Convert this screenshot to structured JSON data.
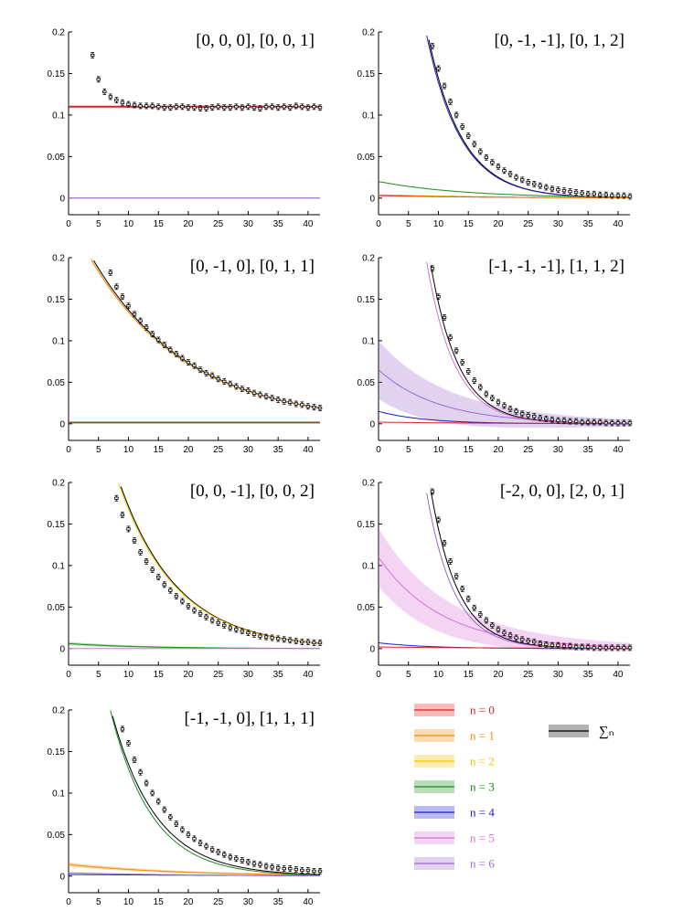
{
  "chart_data": {
    "type": "line",
    "panels": [
      {
        "title": "[0, 0, 0], [0, 0, 1]",
        "xlim": [
          0,
          42
        ],
        "ylim": [
          -0.02,
          0.2
        ],
        "xticks": [
          0,
          5,
          10,
          15,
          20,
          25,
          30,
          35,
          40
        ],
        "yticks": [
          0,
          0.05,
          0.1,
          0.15,
          0.2
        ],
        "ytick_labels": [
          "0",
          "0.05",
          "0.1",
          "0.15",
          "0.2"
        ],
        "curves": [
          {
            "state": "sum",
            "A": 0.11,
            "k": 0.0,
            "band": 0.0015
          },
          {
            "state": "n0",
            "A": 0.11,
            "k": 0.0,
            "band": 0.001
          },
          {
            "state": "n5",
            "A": 0.0,
            "k": 0.0,
            "band": 0.0
          },
          {
            "state": "n6",
            "A": 0.0,
            "k": 0.0,
            "band": 0.0
          }
        ],
        "points": {
          "x": [
            4,
            5,
            6,
            7,
            8,
            9,
            10,
            11,
            12,
            13,
            14,
            15,
            16,
            17,
            18,
            19,
            20,
            21,
            22,
            23,
            24,
            25,
            26,
            27,
            28,
            29,
            30,
            31,
            32,
            33,
            34,
            35,
            36,
            37,
            38,
            39,
            40,
            41,
            42
          ],
          "y": [
            0.172,
            0.143,
            0.128,
            0.122,
            0.118,
            0.115,
            0.113,
            0.112,
            0.111,
            0.111,
            0.111,
            0.11,
            0.109,
            0.109,
            0.11,
            0.11,
            0.109,
            0.109,
            0.108,
            0.108,
            0.109,
            0.11,
            0.109,
            0.109,
            0.11,
            0.109,
            0.11,
            0.109,
            0.108,
            0.11,
            0.11,
            0.109,
            0.11,
            0.109,
            0.111,
            0.11,
            0.109,
            0.11,
            0.109
          ]
        }
      },
      {
        "title": "[0, -1, -1], [0, 1, 2]",
        "xlim": [
          0,
          42
        ],
        "ylim": [
          -0.02,
          0.2
        ],
        "xticks": [
          0,
          5,
          10,
          15,
          20,
          25,
          30,
          35,
          40
        ],
        "yticks": [
          0,
          0.05,
          0.1,
          0.15,
          0.2
        ],
        "ytick_labels": [
          "0",
          "0.05",
          "0.1",
          "0.15",
          "0.2"
        ],
        "curves": [
          {
            "state": "sum",
            "A": 0.83,
            "k": 0.175,
            "band": 0.0
          },
          {
            "state": "n4",
            "A": 0.8,
            "k": 0.175,
            "band": 0.0
          },
          {
            "state": "n3",
            "A": 0.02,
            "k": 0.07,
            "band": 0.0
          },
          {
            "state": "n0",
            "A": 0.003,
            "k": 0.05,
            "band": 0.0
          },
          {
            "state": "n1",
            "A": 0.004,
            "k": 0.05,
            "band": 0.0
          }
        ],
        "points": {
          "x": [
            9,
            10,
            11,
            12,
            13,
            14,
            15,
            16,
            17,
            18,
            19,
            20,
            21,
            22,
            23,
            24,
            25,
            26,
            27,
            28,
            29,
            30,
            31,
            32,
            33,
            34,
            35,
            36,
            37,
            38,
            39,
            40,
            41,
            42
          ],
          "y": [
            0.183,
            0.156,
            0.135,
            0.116,
            0.1,
            0.086,
            0.075,
            0.065,
            0.056,
            0.049,
            0.043,
            0.038,
            0.033,
            0.029,
            0.025,
            0.022,
            0.019,
            0.017,
            0.015,
            0.013,
            0.011,
            0.01,
            0.009,
            0.008,
            0.007,
            0.006,
            0.005,
            0.005,
            0.004,
            0.004,
            0.003,
            0.003,
            0.003,
            0.002
          ]
        }
      },
      {
        "title": "[0, -1, 0], [0, 1, 1]",
        "xlim": [
          0,
          42
        ],
        "ylim": [
          -0.02,
          0.2
        ],
        "xticks": [
          0,
          5,
          10,
          15,
          20,
          25,
          30,
          35,
          40
        ],
        "yticks": [
          0,
          0.05,
          0.1,
          0.15,
          0.2
        ],
        "ytick_labels": [
          "0",
          "0.05",
          "0.1",
          "0.15",
          "0.2"
        ],
        "curves": [
          {
            "state": "sum",
            "A": 0.255,
            "k": 0.062,
            "band": 0.0
          },
          {
            "state": "n1",
            "A": 0.25,
            "k": 0.062,
            "band": 0.002
          },
          {
            "state": "n0",
            "A": 0.002,
            "k": 0.0,
            "band": 0.0
          },
          {
            "state": "n3",
            "A": 0.001,
            "k": 0.0,
            "band": 0.0
          }
        ],
        "points": {
          "x": [
            7,
            8,
            9,
            10,
            11,
            12,
            13,
            14,
            15,
            16,
            17,
            18,
            19,
            20,
            21,
            22,
            23,
            24,
            25,
            26,
            27,
            28,
            29,
            30,
            31,
            32,
            33,
            34,
            35,
            36,
            37,
            38,
            39,
            40,
            41,
            42
          ],
          "y": [
            0.182,
            0.165,
            0.153,
            0.142,
            0.132,
            0.124,
            0.116,
            0.108,
            0.101,
            0.095,
            0.089,
            0.084,
            0.079,
            0.074,
            0.07,
            0.065,
            0.061,
            0.058,
            0.054,
            0.051,
            0.048,
            0.045,
            0.042,
            0.04,
            0.037,
            0.035,
            0.033,
            0.031,
            0.029,
            0.027,
            0.026,
            0.024,
            0.023,
            0.021,
            0.02,
            0.019
          ]
        }
      },
      {
        "title": "[-1, -1, -1], [1, 1, 2]",
        "xlim": [
          0,
          42
        ],
        "ylim": [
          -0.02,
          0.2
        ],
        "xticks": [
          0,
          5,
          10,
          15,
          20,
          25,
          30,
          35,
          40
        ],
        "yticks": [
          0,
          0.05,
          0.1,
          0.15,
          0.2
        ],
        "ytick_labels": [
          "0",
          "0.05",
          "0.1",
          "0.15",
          "0.2"
        ],
        "curves": [
          {
            "state": "n6",
            "A": 0.065,
            "k": 0.1,
            "band": 0.035
          },
          {
            "state": "sum",
            "A": 1.25,
            "k": 0.215,
            "band": 0.002
          },
          {
            "state": "n5",
            "A": 1.1,
            "k": 0.215,
            "band": 0.0
          },
          {
            "state": "n4",
            "A": 0.015,
            "k": 0.13,
            "band": 0.0
          },
          {
            "state": "n0",
            "A": 0.002,
            "k": 0.05,
            "band": 0.0
          }
        ],
        "points": {
          "x": [
            9,
            10,
            11,
            12,
            13,
            14,
            15,
            16,
            17,
            18,
            19,
            20,
            21,
            22,
            23,
            24,
            25,
            26,
            27,
            28,
            29,
            30,
            31,
            32,
            33,
            34,
            35,
            36,
            37,
            38,
            39,
            40,
            41,
            42
          ],
          "y": [
            0.187,
            0.153,
            0.128,
            0.104,
            0.088,
            0.074,
            0.063,
            0.052,
            0.044,
            0.036,
            0.031,
            0.026,
            0.022,
            0.018,
            0.015,
            0.012,
            0.01,
            0.009,
            0.007,
            0.006,
            0.005,
            0.004,
            0.004,
            0.003,
            0.003,
            0.002,
            0.002,
            0.002,
            0.002,
            0.001,
            0.001,
            0.001,
            0.001,
            0.001
          ]
        }
      },
      {
        "title": "[0, 0, -1], [0, 0, 2]",
        "xlim": [
          0,
          42
        ],
        "ylim": [
          -0.02,
          0.2
        ],
        "xticks": [
          0,
          5,
          10,
          15,
          20,
          25,
          30,
          35,
          40
        ],
        "yticks": [
          0,
          0.05,
          0.1,
          0.15,
          0.2
        ],
        "ytick_labels": [
          "0",
          "0.05",
          "0.1",
          "0.15",
          "0.2"
        ],
        "curves": [
          {
            "state": "n3",
            "A": 0.006,
            "k": 0.08,
            "band": 0.002
          },
          {
            "state": "sum",
            "A": 0.48,
            "k": 0.103,
            "band": 0.0
          },
          {
            "state": "n2",
            "A": 0.47,
            "k": 0.103,
            "band": 0.002
          },
          {
            "state": "n5",
            "A": 0.0,
            "k": 0.0,
            "band": 0.0
          }
        ],
        "points": {
          "x": [
            8,
            9,
            10,
            11,
            12,
            13,
            14,
            15,
            16,
            17,
            18,
            19,
            20,
            21,
            22,
            23,
            24,
            25,
            26,
            27,
            28,
            29,
            30,
            31,
            32,
            33,
            34,
            35,
            36,
            37,
            38,
            39,
            40,
            41,
            42
          ],
          "y": [
            0.181,
            0.161,
            0.144,
            0.13,
            0.116,
            0.105,
            0.095,
            0.086,
            0.077,
            0.07,
            0.063,
            0.057,
            0.051,
            0.046,
            0.042,
            0.038,
            0.034,
            0.031,
            0.028,
            0.025,
            0.023,
            0.021,
            0.019,
            0.017,
            0.015,
            0.014,
            0.013,
            0.012,
            0.011,
            0.01,
            0.009,
            0.008,
            0.008,
            0.007,
            0.007
          ]
        }
      },
      {
        "title": "[-2, 0, 0], [2, 0, 1]",
        "xlim": [
          0,
          42
        ],
        "ylim": [
          -0.02,
          0.2
        ],
        "xticks": [
          0,
          5,
          10,
          15,
          20,
          25,
          30,
          35,
          40
        ],
        "yticks": [
          0,
          0.05,
          0.1,
          0.15,
          0.2
        ],
        "ytick_labels": [
          "0",
          "0.05",
          "0.1",
          "0.15",
          "0.2"
        ],
        "curves": [
          {
            "state": "n5",
            "A": 0.11,
            "k": 0.095,
            "band": 0.035
          },
          {
            "state": "sum",
            "A": 1.3,
            "k": 0.22,
            "band": 0.004
          },
          {
            "state": "n6",
            "A": 1.1,
            "k": 0.22,
            "band": 0.0
          },
          {
            "state": "n4",
            "A": 0.007,
            "k": 0.12,
            "band": 0.0
          },
          {
            "state": "n0",
            "A": 0.002,
            "k": 0.05,
            "band": 0.0
          }
        ],
        "points": {
          "x": [
            9,
            10,
            11,
            12,
            13,
            14,
            15,
            16,
            17,
            18,
            19,
            20,
            21,
            22,
            23,
            24,
            25,
            26,
            27,
            28,
            29,
            30,
            31,
            32,
            33,
            34,
            35,
            36,
            37,
            38,
            39,
            40,
            41,
            42
          ],
          "y": [
            0.189,
            0.155,
            0.127,
            0.105,
            0.087,
            0.072,
            0.06,
            0.049,
            0.041,
            0.034,
            0.028,
            0.023,
            0.019,
            0.016,
            0.013,
            0.011,
            0.009,
            0.008,
            0.006,
            0.005,
            0.004,
            0.004,
            0.003,
            0.003,
            0.002,
            0.002,
            0.002,
            0.001,
            0.001,
            0.001,
            0.001,
            0.001,
            0.001,
            0.001
          ]
        }
      },
      {
        "title": "[-1, -1, 0], [1, 1, 1]",
        "xlim": [
          0,
          42
        ],
        "ylim": [
          -0.02,
          0.2
        ],
        "xticks": [
          0,
          5,
          10,
          15,
          20,
          25,
          30,
          35,
          40
        ],
        "yticks": [
          0,
          0.05,
          0.1,
          0.15,
          0.2
        ],
        "ytick_labels": [
          "0",
          "0.05",
          "0.1",
          "0.15",
          "0.2"
        ],
        "curves": [
          {
            "state": "n1",
            "A": 0.014,
            "k": 0.055,
            "band": 0.0025
          },
          {
            "state": "sum",
            "A": 0.52,
            "k": 0.135,
            "band": 0.0
          },
          {
            "state": "n3",
            "A": 0.55,
            "k": 0.145,
            "band": 0.0
          },
          {
            "state": "n4",
            "A": 0.002,
            "k": 0.03,
            "band": 0.0
          },
          {
            "state": "n6",
            "A": 0.004,
            "k": 0.05,
            "band": 0.0
          }
        ],
        "points": {
          "x": [
            9,
            10,
            11,
            12,
            13,
            14,
            15,
            16,
            17,
            18,
            19,
            20,
            21,
            22,
            23,
            24,
            25,
            26,
            27,
            28,
            29,
            30,
            31,
            32,
            33,
            34,
            35,
            36,
            37,
            38,
            39,
            40,
            41,
            42
          ],
          "y": [
            0.177,
            0.16,
            0.14,
            0.125,
            0.112,
            0.1,
            0.09,
            0.08,
            0.071,
            0.063,
            0.056,
            0.05,
            0.045,
            0.04,
            0.036,
            0.032,
            0.029,
            0.026,
            0.023,
            0.021,
            0.019,
            0.017,
            0.015,
            0.014,
            0.012,
            0.011,
            0.01,
            0.009,
            0.009,
            0.008,
            0.007,
            0.007,
            0.006,
            0.006
          ]
        }
      }
    ]
  },
  "legend": {
    "items": [
      {
        "key": "n0",
        "label": "n = 0",
        "color": "#e02020"
      },
      {
        "key": "n1",
        "label": "n = 1",
        "color": "#f08c00"
      },
      {
        "key": "n2",
        "label": "n = 2",
        "color": "#f2c400"
      },
      {
        "key": "n3",
        "label": "n = 3",
        "color": "#1a8a1a"
      },
      {
        "key": "n4",
        "label": "n = 4",
        "color": "#1a1acc"
      },
      {
        "key": "n5",
        "label": "n = 5",
        "color": "#d66fd6"
      },
      {
        "key": "n6",
        "label": "n = 6",
        "color": "#9a6acc"
      }
    ],
    "sum": {
      "key": "sum",
      "label": "∑ₙ",
      "color": "#000000"
    }
  },
  "colors": {
    "sum": "#000000",
    "n0": "#e02020",
    "n1": "#f08c00",
    "n2": "#f2c400",
    "n3": "#1a8a1a",
    "n4": "#1a1acc",
    "n5": "#d66fd6",
    "n6": "#9a6acc"
  }
}
